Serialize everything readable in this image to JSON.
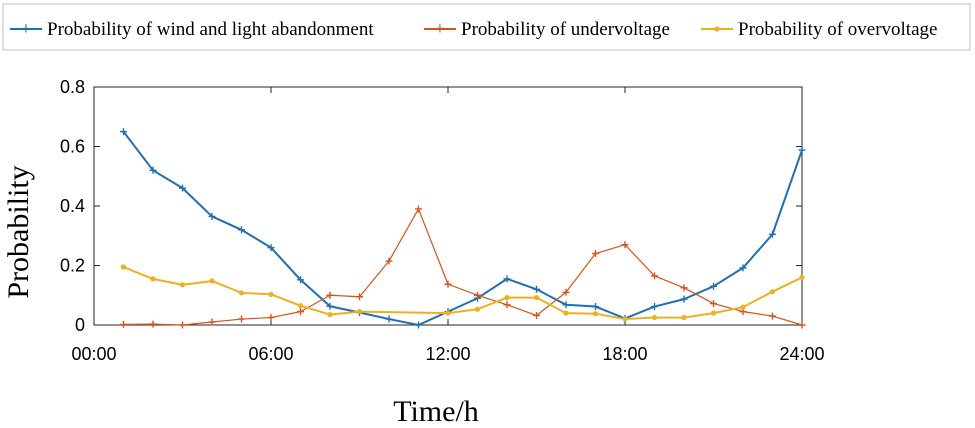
{
  "chart_data": {
    "type": "line",
    "title": "",
    "xlabel": "Time/h",
    "ylabel": "Probability",
    "xlim": [
      0,
      24
    ],
    "ylim": [
      0,
      0.8
    ],
    "xticks": [
      0,
      6,
      12,
      18,
      24
    ],
    "xtick_labels": [
      "00:00",
      "06:00",
      "12:00",
      "18:00",
      "24:00"
    ],
    "yticks": [
      0,
      0.2,
      0.4,
      0.6,
      0.8
    ],
    "ytick_labels": [
      "0",
      "0.2",
      "0.4",
      "0.6",
      "0.8"
    ],
    "grid": false,
    "legend_position": "top",
    "x": [
      1,
      2,
      3,
      4,
      5,
      6,
      7,
      8,
      9,
      10,
      11,
      12,
      13,
      14,
      15,
      16,
      17,
      18,
      19,
      20,
      21,
      22,
      23,
      24
    ],
    "series": [
      {
        "name": "Probability of wind and light abandonment",
        "color": "#1f6fb4",
        "marker": "plus",
        "values": [
          0.65,
          0.52,
          0.46,
          0.365,
          0.32,
          0.26,
          0.152,
          0.063,
          0.042,
          0.02,
          0.0,
          0.045,
          0.09,
          0.155,
          0.12,
          0.068,
          0.062,
          0.022,
          0.062,
          0.087,
          0.13,
          0.192,
          0.305,
          0.588
        ]
      },
      {
        "name": "Probability of undervoltage",
        "color": "#d95319",
        "marker": "plus",
        "values": [
          0.002,
          0.003,
          0.0,
          0.01,
          0.02,
          0.025,
          0.045,
          0.1,
          0.095,
          0.215,
          0.39,
          0.137,
          0.1,
          0.068,
          0.032,
          0.11,
          0.24,
          0.27,
          0.165,
          0.125,
          0.072,
          0.045,
          0.03,
          0.0
        ]
      },
      {
        "name": "Probability of overvoltage",
        "color": "#edb120",
        "marker": "dot",
        "values": [
          0.195,
          0.155,
          0.135,
          0.148,
          0.108,
          0.103,
          0.065,
          0.035,
          0.045,
          null,
          null,
          0.04,
          0.053,
          0.092,
          0.092,
          0.04,
          0.038,
          0.02,
          0.025,
          0.025,
          0.04,
          0.06,
          0.112,
          0.16
        ]
      }
    ]
  }
}
